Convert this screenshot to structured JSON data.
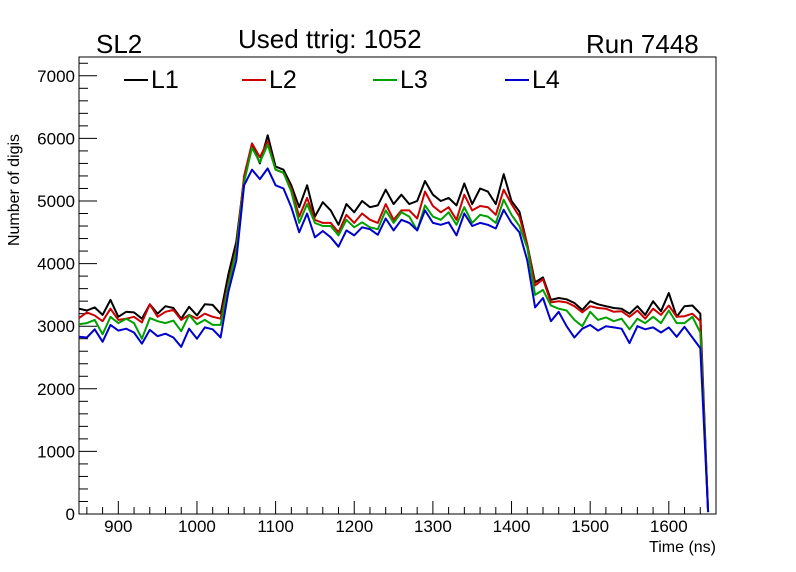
{
  "header": {
    "left": "SL2",
    "center": "Used ttrig: 1052",
    "right": "Run 7448"
  },
  "chart_data": {
    "type": "line",
    "title": "Used ttrig: 1052",
    "xlabel": "Time (ns)",
    "ylabel": "Number of digis",
    "xlim": [
      850,
      1660
    ],
    "ylim": [
      0,
      7300
    ],
    "xticks": [
      900,
      1000,
      1100,
      1200,
      1300,
      1400,
      1500,
      1600
    ],
    "yticks": [
      0,
      1000,
      2000,
      3000,
      4000,
      5000,
      6000,
      7000
    ],
    "grid": false,
    "legend_position": "top",
    "x": [
      850,
      860,
      870,
      880,
      890,
      900,
      910,
      920,
      930,
      940,
      950,
      960,
      970,
      980,
      990,
      1000,
      1010,
      1020,
      1030,
      1040,
      1050,
      1060,
      1070,
      1080,
      1090,
      1100,
      1110,
      1120,
      1130,
      1140,
      1150,
      1160,
      1170,
      1180,
      1190,
      1200,
      1210,
      1220,
      1230,
      1240,
      1250,
      1260,
      1270,
      1280,
      1290,
      1300,
      1310,
      1320,
      1330,
      1340,
      1350,
      1360,
      1370,
      1380,
      1390,
      1400,
      1410,
      1420,
      1430,
      1440,
      1450,
      1460,
      1470,
      1480,
      1490,
      1500,
      1510,
      1520,
      1530,
      1540,
      1550,
      1560,
      1570,
      1580,
      1590,
      1600,
      1610,
      1620,
      1630,
      1640,
      1650
    ],
    "series": [
      {
        "name": "L1",
        "color": "#000000",
        "values": [
          3280,
          3250,
          3300,
          3180,
          3420,
          3150,
          3230,
          3220,
          3120,
          3350,
          3200,
          3320,
          3290,
          3120,
          3310,
          3170,
          3350,
          3340,
          3200,
          3830,
          4350,
          5350,
          5900,
          5600,
          6050,
          5550,
          5500,
          5250,
          4900,
          5250,
          4750,
          4980,
          4850,
          4620,
          4950,
          4820,
          5000,
          4900,
          4930,
          5180,
          4950,
          5100,
          4950,
          5000,
          5320,
          5100,
          5000,
          5050,
          4930,
          5280,
          4950,
          5200,
          5150,
          4950,
          5430,
          5000,
          4830,
          4300,
          3700,
          3780,
          3420,
          3450,
          3430,
          3370,
          3260,
          3400,
          3350,
          3320,
          3290,
          3280,
          3200,
          3320,
          3180,
          3400,
          3240,
          3530,
          3150,
          3320,
          3330,
          3200,
          30
        ]
      },
      {
        "name": "L2",
        "color": "#cc0000",
        "values": [
          3130,
          3220,
          3170,
          3080,
          3280,
          3100,
          3120,
          3150,
          3060,
          3350,
          3150,
          3230,
          3260,
          3100,
          3180,
          3120,
          3200,
          3150,
          3120,
          3700,
          4250,
          5400,
          5920,
          5700,
          5950,
          5500,
          5450,
          5200,
          4750,
          5050,
          4700,
          4650,
          4650,
          4500,
          4780,
          4650,
          4800,
          4700,
          4650,
          4950,
          4700,
          4850,
          4850,
          4720,
          5150,
          4920,
          4820,
          4900,
          4700,
          5100,
          4850,
          4920,
          4900,
          4780,
          5180,
          4950,
          4750,
          4300,
          3650,
          3750,
          3380,
          3400,
          3380,
          3320,
          3220,
          3320,
          3290,
          3280,
          3230,
          3240,
          3150,
          3250,
          3120,
          3280,
          3180,
          3330,
          3150,
          3160,
          3200,
          3080,
          30
        ]
      },
      {
        "name": "L3",
        "color": "#00a000",
        "values": [
          3030,
          3050,
          3100,
          2870,
          3150,
          3050,
          3120,
          3050,
          2800,
          3130,
          3080,
          3050,
          3090,
          2920,
          3180,
          3030,
          3100,
          3020,
          3020,
          3650,
          4200,
          5300,
          5850,
          5620,
          5900,
          5500,
          5450,
          5150,
          4650,
          4950,
          4650,
          4600,
          4600,
          4450,
          4700,
          4580,
          4660,
          4580,
          4550,
          4850,
          4650,
          4820,
          4750,
          4530,
          4930,
          4750,
          4700,
          4820,
          4620,
          4900,
          4650,
          4780,
          4750,
          4650,
          5020,
          4780,
          4600,
          4250,
          3500,
          3580,
          3330,
          3280,
          3250,
          3100,
          3000,
          3230,
          3100,
          3140,
          3080,
          3120,
          2950,
          3120,
          3050,
          3150,
          3050,
          3250,
          3050,
          3050,
          3150,
          2900,
          30
        ]
      },
      {
        "name": "L4",
        "color": "#0000cc",
        "values": [
          2830,
          2820,
          2950,
          2750,
          3020,
          2930,
          2960,
          2900,
          2720,
          2940,
          2840,
          2880,
          2820,
          2670,
          2960,
          2800,
          2980,
          2950,
          2820,
          3550,
          4050,
          5250,
          5500,
          5350,
          5520,
          5250,
          5200,
          4900,
          4500,
          4800,
          4420,
          4520,
          4420,
          4270,
          4530,
          4450,
          4580,
          4550,
          4460,
          4720,
          4530,
          4700,
          4650,
          4530,
          4850,
          4650,
          4620,
          4660,
          4450,
          4800,
          4600,
          4650,
          4620,
          4560,
          4860,
          4650,
          4500,
          4050,
          3300,
          3450,
          3080,
          3230,
          3000,
          2820,
          2960,
          3020,
          2930,
          3000,
          2980,
          2960,
          2730,
          3000,
          2950,
          2980,
          2900,
          2980,
          2830,
          2990,
          2820,
          2650,
          30
        ]
      }
    ]
  }
}
